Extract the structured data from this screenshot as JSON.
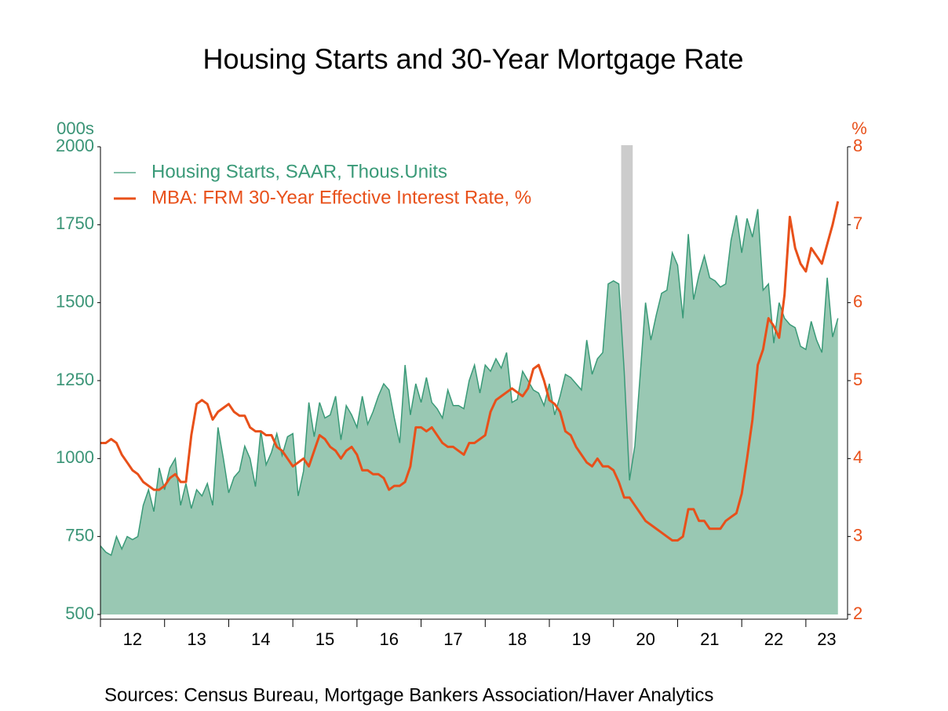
{
  "chart_data": {
    "type": "combo",
    "title": "Housing Starts and 30-Year Mortgage Rate",
    "y_label": "000s",
    "y2_label": "%",
    "source": "Sources:  Census Bureau, Mortgage Bankers Association/Haver Analytics",
    "xlim": [
      2012,
      2023.65
    ],
    "xticks": [
      {
        "value": 2012,
        "label": "12"
      },
      {
        "value": 2013,
        "label": "13"
      },
      {
        "value": 2014,
        "label": "14"
      },
      {
        "value": 2015,
        "label": "15"
      },
      {
        "value": 2016,
        "label": "16"
      },
      {
        "value": 2017,
        "label": "17"
      },
      {
        "value": 2018,
        "label": "18"
      },
      {
        "value": 2019,
        "label": "19"
      },
      {
        "value": 2020,
        "label": "20"
      },
      {
        "value": 2021,
        "label": "21"
      },
      {
        "value": 2022,
        "label": "22"
      },
      {
        "value": 2023,
        "label": "23"
      }
    ],
    "ylim": [
      500,
      2000
    ],
    "yticks": [
      500,
      750,
      1000,
      1250,
      1500,
      1750,
      2000
    ],
    "y2lim": [
      2,
      8
    ],
    "y2ticks": [
      2,
      3,
      4,
      5,
      6,
      7,
      8
    ],
    "recession": {
      "start": 2020.12,
      "end": 2020.3,
      "color": "#cccccc"
    },
    "x": [
      2012,
      2012.083,
      2012.167,
      2012.25,
      2012.333,
      2012.417,
      2012.5,
      2012.583,
      2012.667,
      2012.75,
      2012.833,
      2012.917,
      2013,
      2013.083,
      2013.167,
      2013.25,
      2013.333,
      2013.417,
      2013.5,
      2013.583,
      2013.667,
      2013.75,
      2013.833,
      2013.917,
      2014,
      2014.083,
      2014.167,
      2014.25,
      2014.333,
      2014.417,
      2014.5,
      2014.583,
      2014.667,
      2014.75,
      2014.833,
      2014.917,
      2015,
      2015.083,
      2015.167,
      2015.25,
      2015.333,
      2015.417,
      2015.5,
      2015.583,
      2015.667,
      2015.75,
      2015.833,
      2015.917,
      2016,
      2016.083,
      2016.167,
      2016.25,
      2016.333,
      2016.417,
      2016.5,
      2016.583,
      2016.667,
      2016.75,
      2016.833,
      2016.917,
      2017,
      2017.083,
      2017.167,
      2017.25,
      2017.333,
      2017.417,
      2017.5,
      2017.583,
      2017.667,
      2017.75,
      2017.833,
      2017.917,
      2018,
      2018.083,
      2018.167,
      2018.25,
      2018.333,
      2018.417,
      2018.5,
      2018.583,
      2018.667,
      2018.75,
      2018.833,
      2018.917,
      2019,
      2019.083,
      2019.167,
      2019.25,
      2019.333,
      2019.417,
      2019.5,
      2019.583,
      2019.667,
      2019.75,
      2019.833,
      2019.917,
      2020,
      2020.083,
      2020.167,
      2020.25,
      2020.333,
      2020.417,
      2020.5,
      2020.583,
      2020.667,
      2020.75,
      2020.833,
      2020.917,
      2021,
      2021.083,
      2021.167,
      2021.25,
      2021.333,
      2021.417,
      2021.5,
      2021.583,
      2021.667,
      2021.75,
      2021.833,
      2021.917,
      2022,
      2022.083,
      2022.167,
      2022.25,
      2022.333,
      2022.417,
      2022.5,
      2022.583,
      2022.667,
      2022.75,
      2022.833,
      2022.917,
      2023,
      2023.083,
      2023.167,
      2023.25,
      2023.333,
      2023.417,
      2023.5
    ],
    "series": [
      {
        "name": "Housing Starts, SAAR, Thous.Units",
        "type": "area",
        "color": "#3a9a78",
        "fill": "#99c8b3",
        "values": [
          720,
          700,
          690,
          750,
          710,
          750,
          740,
          750,
          850,
          900,
          830,
          970,
          900,
          970,
          1000,
          850,
          920,
          840,
          900,
          880,
          920,
          850,
          1100,
          1000,
          890,
          940,
          960,
          1040,
          1000,
          910,
          1090,
          980,
          1020,
          1080,
          1010,
          1070,
          1080,
          880,
          960,
          1180,
          1070,
          1180,
          1130,
          1140,
          1200,
          1060,
          1170,
          1140,
          1100,
          1200,
          1110,
          1150,
          1200,
          1240,
          1220,
          1130,
          1050,
          1300,
          1140,
          1240,
          1180,
          1260,
          1180,
          1160,
          1130,
          1220,
          1170,
          1170,
          1160,
          1250,
          1300,
          1210,
          1300,
          1280,
          1320,
          1290,
          1340,
          1180,
          1190,
          1280,
          1250,
          1220,
          1210,
          1170,
          1240,
          1140,
          1200,
          1270,
          1260,
          1240,
          1220,
          1380,
          1270,
          1320,
          1340,
          1560,
          1570,
          1560,
          1280,
          930,
          1040,
          1270,
          1500,
          1380,
          1460,
          1530,
          1540,
          1660,
          1620,
          1450,
          1720,
          1510,
          1590,
          1650,
          1580,
          1570,
          1550,
          1560,
          1700,
          1780,
          1660,
          1770,
          1710,
          1800,
          1540,
          1560,
          1370,
          1500,
          1450,
          1430,
          1420,
          1360,
          1350,
          1440,
          1380,
          1340,
          1580,
          1390,
          1450
        ]
      },
      {
        "name": "MBA: FRM 30-Year Effective Interest Rate, %",
        "type": "line",
        "axis": "y2",
        "color": "#e8501a",
        "values": [
          4.2,
          4.2,
          4.25,
          4.2,
          4.05,
          3.95,
          3.85,
          3.8,
          3.7,
          3.65,
          3.6,
          3.6,
          3.65,
          3.75,
          3.8,
          3.7,
          3.7,
          4.3,
          4.7,
          4.75,
          4.7,
          4.5,
          4.6,
          4.65,
          4.7,
          4.6,
          4.55,
          4.55,
          4.4,
          4.35,
          4.35,
          4.3,
          4.3,
          4.15,
          4.1,
          4.0,
          3.9,
          3.95,
          4.0,
          3.9,
          4.1,
          4.3,
          4.25,
          4.15,
          4.1,
          4.0,
          4.1,
          4.15,
          4.05,
          3.85,
          3.85,
          3.8,
          3.8,
          3.75,
          3.6,
          3.65,
          3.65,
          3.7,
          3.9,
          4.4,
          4.4,
          4.35,
          4.4,
          4.3,
          4.2,
          4.15,
          4.15,
          4.1,
          4.05,
          4.2,
          4.2,
          4.25,
          4.3,
          4.6,
          4.75,
          4.8,
          4.85,
          4.9,
          4.85,
          4.8,
          4.9,
          5.15,
          5.2,
          5.0,
          4.75,
          4.7,
          4.6,
          4.35,
          4.3,
          4.15,
          4.05,
          3.95,
          3.9,
          4.0,
          3.9,
          3.9,
          3.85,
          3.7,
          3.5,
          3.5,
          3.4,
          3.3,
          3.2,
          3.15,
          3.1,
          3.05,
          3.0,
          2.95,
          2.95,
          3.0,
          3.35,
          3.35,
          3.2,
          3.2,
          3.1,
          3.1,
          3.1,
          3.2,
          3.25,
          3.3,
          3.55,
          4.0,
          4.5,
          5.2,
          5.4,
          5.8,
          5.7,
          5.55,
          6.1,
          7.1,
          6.7,
          6.5,
          6.4,
          6.7,
          6.6,
          6.5,
          6.75,
          7.0,
          7.3
        ]
      }
    ]
  }
}
